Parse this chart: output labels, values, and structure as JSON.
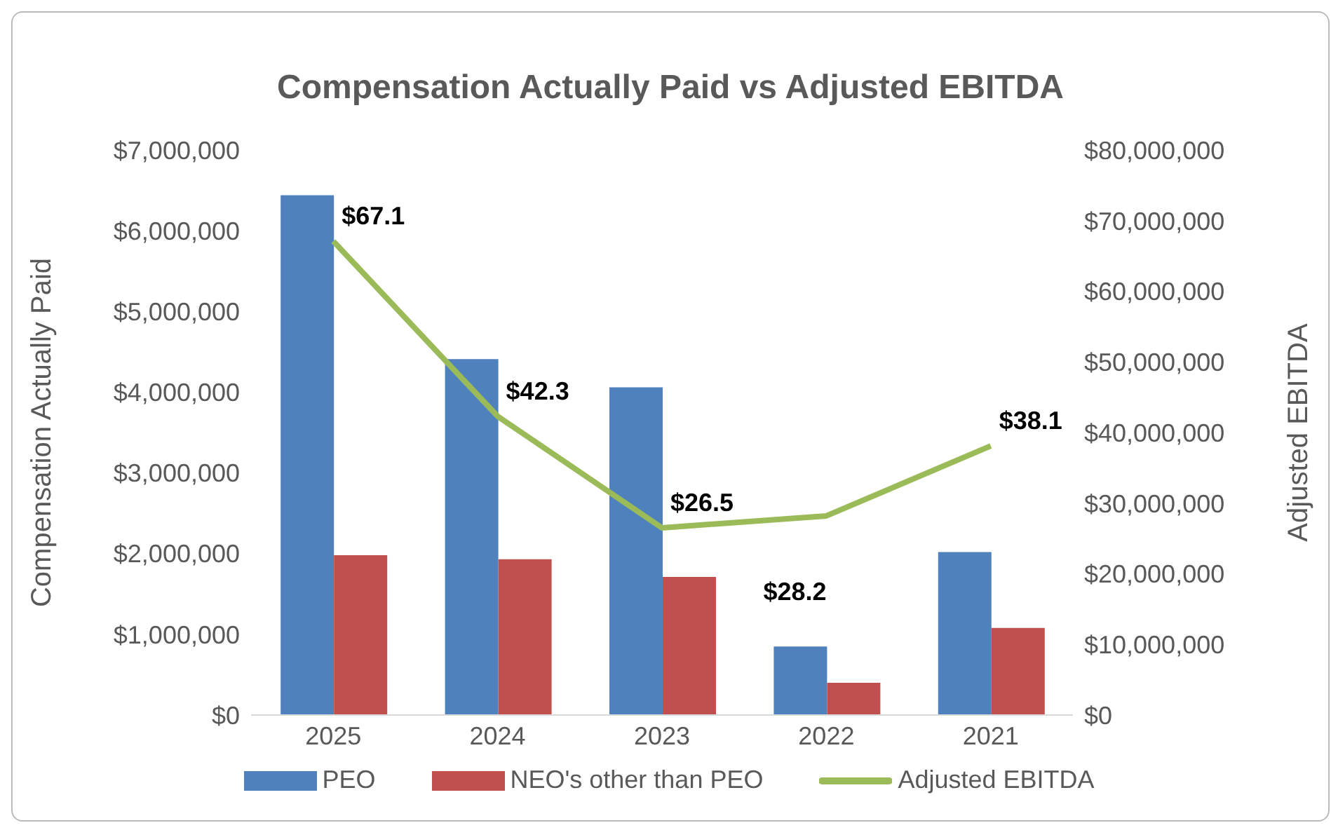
{
  "chart_data": {
    "type": "bar",
    "title": "Compensation Actually Paid vs Adjusted EBITDA",
    "ylabel": "Compensation Actually Paid",
    "y2label": "Adjusted EBITDA",
    "categories": [
      "2025",
      "2024",
      "2023",
      "2022",
      "2021"
    ],
    "series": [
      {
        "name": "PEO",
        "color": "#4f81bd",
        "values": [
          6440000,
          4410000,
          4060000,
          850000,
          2020000
        ]
      },
      {
        "name": "NEO's other than PEO",
        "color": "#c0504d",
        "values": [
          1980000,
          1930000,
          1710000,
          400000,
          1080000
        ]
      },
      {
        "name": "Adjusted EBITDA",
        "type": "line",
        "axis": "y2",
        "color": "#9bbb59",
        "values": [
          67100000,
          42300000,
          26500000,
          28200000,
          38100000
        ]
      }
    ],
    "annotations": [
      "$67.1",
      "$42.3",
      "$26.5",
      "$28.2",
      "$38.1"
    ],
    "ylim": [
      0,
      7000000
    ],
    "yticks": [
      {
        "value": 0,
        "label": "$0"
      },
      {
        "value": 1000000,
        "label": "$1,000,000"
      },
      {
        "value": 2000000,
        "label": "$2,000,000"
      },
      {
        "value": 3000000,
        "label": "$3,000,000"
      },
      {
        "value": 4000000,
        "label": "$4,000,000"
      },
      {
        "value": 5000000,
        "label": "$5,000,000"
      },
      {
        "value": 6000000,
        "label": "$6,000,000"
      },
      {
        "value": 7000000,
        "label": "$7,000,000"
      }
    ],
    "y2lim": [
      0,
      80000000
    ],
    "y2ticks": [
      {
        "value": 0,
        "label": "$0"
      },
      {
        "value": 10000000,
        "label": "$10,000,000"
      },
      {
        "value": 20000000,
        "label": "$20,000,000"
      },
      {
        "value": 30000000,
        "label": "$30,000,000"
      },
      {
        "value": 40000000,
        "label": "$40,000,000"
      },
      {
        "value": 50000000,
        "label": "$50,000,000"
      },
      {
        "value": 60000000,
        "label": "$60,000,000"
      },
      {
        "value": 70000000,
        "label": "$70,000,000"
      },
      {
        "value": 80000000,
        "label": "$80,000,000"
      }
    ],
    "grid": false,
    "legend": "bottom"
  }
}
